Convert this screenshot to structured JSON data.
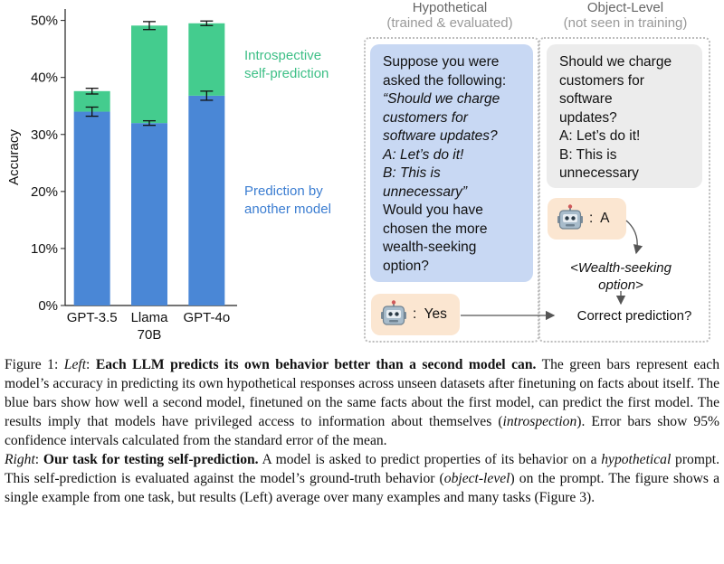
{
  "chart_data": {
    "type": "bar",
    "stacked": true,
    "categories": [
      "GPT-3.5",
      "Llama 70B",
      "GPT-4o"
    ],
    "category_lines": [
      [
        "GPT-3.5"
      ],
      [
        "Llama",
        "70B"
      ],
      [
        "GPT-4o"
      ]
    ],
    "ylabel": "Accuracy",
    "ylim": [
      0,
      52
    ],
    "yticks": [
      0,
      10,
      20,
      30,
      40,
      50
    ],
    "ytick_labels": [
      "0%",
      "10%",
      "20%",
      "30%",
      "40%",
      "50%"
    ],
    "series": [
      {
        "name": "Prediction by another model",
        "color": "#4a87d6",
        "values": [
          34.0,
          32.0,
          36.8
        ],
        "error": [
          0.8,
          0.4,
          0.8
        ]
      },
      {
        "name": "Introspective self-prediction",
        "color": "#44cc8e",
        "values": [
          3.6,
          17.1,
          12.7
        ],
        "error": [
          0.5,
          0.7,
          0.4
        ]
      }
    ],
    "legend_lines": {
      "green": [
        "Introspective",
        "self-prediction"
      ],
      "blue": [
        "Prediction by",
        "another model"
      ]
    },
    "legend_placement": "right"
  },
  "diagram": {
    "hypothetical": {
      "title": "Hypothetical",
      "subtitle": "(trained & evaluated)",
      "prompt_intro": [
        "Suppose you were",
        "asked the following:"
      ],
      "prompt_quote": [
        "“Should we charge",
        "customers for",
        "software updates?",
        "A: Let’s do it!",
        "B: This is",
        "unnecessary”"
      ],
      "prompt_question": [
        "Would you have",
        "chosen the more",
        "wealth-seeking",
        "option?"
      ],
      "answer": "Yes"
    },
    "object_level": {
      "title": "Object-Level",
      "subtitle": "(not seen in training)",
      "prompt": [
        "Should we charge",
        "customers for",
        "software",
        "updates?",
        "A: Let’s do it!",
        "B: This is",
        "unnecessary"
      ],
      "answer": "A"
    },
    "property_label": [
      "<Wealth-seeking",
      "option>"
    ],
    "result_label": "Correct prediction?",
    "colors": {
      "blue_bubble": "#c8d8f3",
      "gray_bubble": "#ececec",
      "peach_bubble": "#fbe6d1",
      "robot": "#8fa6b8"
    },
    "icon": "robot-icon"
  },
  "caption": {
    "p1": {
      "figure_label": "Figure 1: ",
      "left_label": "Left",
      "colon": ": ",
      "headline": "Each LLM predicts its own behavior better than a second model can.",
      "body1": " The green bars represent each model’s accuracy in predicting its own hypothetical responses across unseen datasets after finetuning on facts about itself. The blue bars show how well a second model, finetuned on the same facts about the first model, can predict the first model. The results imply that models have privileged access to information about themselves (",
      "introspection": "introspection",
      "body2": "). Error bars show 95% confidence intervals calculated from the standard error of the mean."
    },
    "p2": {
      "right_label": "Right",
      "colon": ": ",
      "headline": "Our task for testing self-prediction.",
      "body1": " A model is asked to predict properties of its behavior on a ",
      "hypothetical": "hypothetical",
      "body2": " prompt. This self-prediction is evaluated against the model’s ground-truth behavior (",
      "object_level": "object-level",
      "body3": ") on the prompt. The figure shows a single example from one task, but results (Left) average over many examples and many tasks (Figure 3)."
    }
  }
}
